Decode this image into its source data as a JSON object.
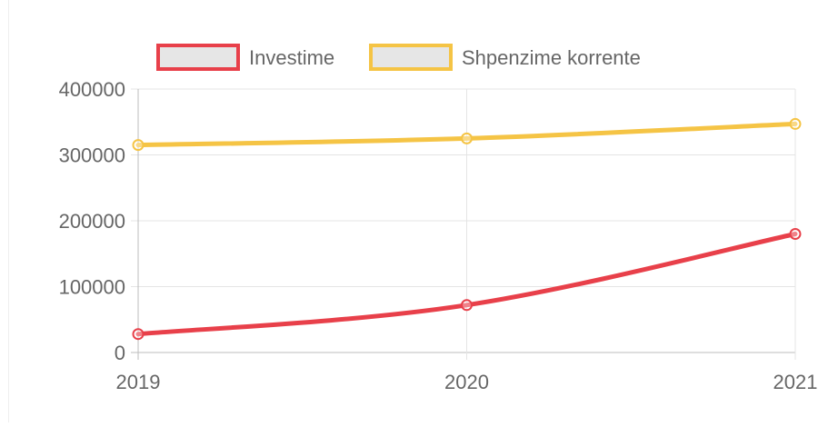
{
  "chart_data": {
    "type": "line",
    "categories": [
      "2019",
      "2020",
      "2021"
    ],
    "series": [
      {
        "name": "Investime",
        "values": [
          28000,
          72000,
          180000
        ],
        "color": "#e8404a",
        "fill": "#e6e6e6"
      },
      {
        "name": "Shpenzime korrente",
        "values": [
          315000,
          325000,
          347000
        ],
        "color": "#f5c445",
        "fill": "#e6e6e6"
      }
    ],
    "ylim": [
      0,
      400000
    ],
    "yticks": [
      "0",
      "100000",
      "200000",
      "300000",
      "400000"
    ],
    "grid": true,
    "legend": "top-center"
  }
}
